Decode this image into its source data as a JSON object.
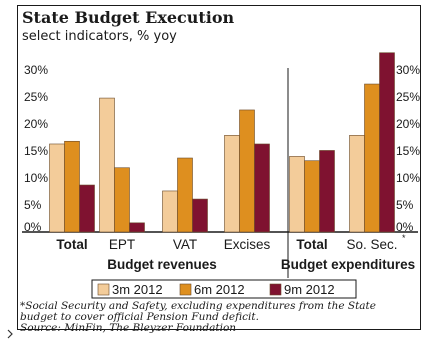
{
  "title": "State Budget Execution",
  "subtitle": "select indicators, % yoy",
  "chart_data": {
    "type": "bar",
    "title": "State Budget Execution",
    "subtitle": "select indicators, % yoy",
    "ylim": [
      0,
      33
    ],
    "yticks": [
      "0%",
      "5%",
      "10%",
      "15%",
      "20%",
      "25%",
      "30%"
    ],
    "ytick_values": [
      0,
      5,
      10,
      15,
      20,
      25,
      30
    ],
    "grid": false,
    "legend_position": "bottom",
    "categories": [
      "Total",
      "EPT",
      "VAT",
      "Excises",
      "Total",
      "So. Sec."
    ],
    "category_groups": [
      {
        "label": "Budget revenues",
        "categories": [
          "Total",
          "EPT",
          "VAT",
          "Excises"
        ]
      },
      {
        "label": "Budget expenditures",
        "categories": [
          "Total",
          "So. Sec."
        ]
      }
    ],
    "bold_categories": [
      "Total"
    ],
    "category_marks": [
      "",
      "",
      "",
      "",
      "",
      "*"
    ],
    "series": [
      {
        "name": "3m 2012",
        "color": "#f3cc9a",
        "values": [
          16.3,
          24.8,
          7.6,
          17.9,
          14.0,
          17.9
        ]
      },
      {
        "name": "6m 2012",
        "color": "#de8f1f",
        "values": [
          16.8,
          11.9,
          13.7,
          22.6,
          13.2,
          27.4
        ]
      },
      {
        "name": "9m 2012",
        "color": "#7f1230",
        "values": [
          8.7,
          1.7,
          6.1,
          16.3,
          15.1,
          33.2
        ]
      }
    ]
  },
  "footnote": {
    "line1": "Social Security and Safety, excluding expenditures from the State",
    "line2": "budget to cover official Pension Fund deficit.",
    "source": "Source: MinFin, The Bleyzer Foundation",
    "mark": "*"
  }
}
